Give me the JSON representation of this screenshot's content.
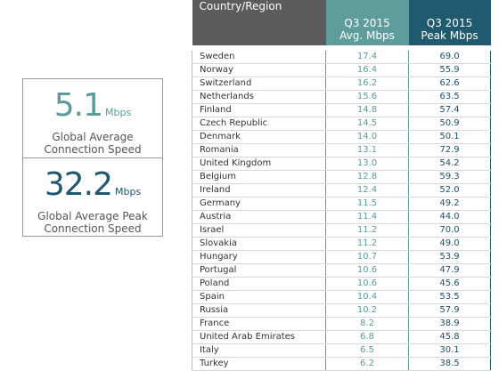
{
  "stats": [
    {
      "value": "5.1",
      "unit": "Mbps",
      "caption": [
        "Global Average",
        "Connection Speed"
      ]
    },
    {
      "value": "32.2",
      "unit": "Mbps",
      "caption": [
        "Global Average Peak",
        "Connection Speed"
      ]
    }
  ],
  "table": {
    "header": [
      [
        "Country/Region"
      ],
      [
        "Q3 2015",
        "Avg. Mbps"
      ],
      [
        "Q3 2015",
        "Peak Mbps"
      ]
    ],
    "rows": [
      [
        "Sweden",
        "17.4",
        "69.0"
      ],
      [
        "Norway",
        "16.4",
        "55.9"
      ],
      [
        "Switzerland",
        "16.2",
        "62.6"
      ],
      [
        "Netherlands",
        "15.6",
        "63.5"
      ],
      [
        "Finland",
        "14.8",
        "57.4"
      ],
      [
        "Czech Republic",
        "14.5",
        "50.9"
      ],
      [
        "Denmark",
        "14.0",
        "50.1"
      ],
      [
        "Romania",
        "13.1",
        "72.9"
      ],
      [
        "United Kingdom",
        "13.0",
        "54.2"
      ],
      [
        "Belgium",
        "12.8",
        "59.3"
      ],
      [
        "Ireland",
        "12.4",
        "52.0"
      ],
      [
        "Germany",
        "11.5",
        "49.2"
      ],
      [
        "Austria",
        "11.4",
        "44.0"
      ],
      [
        "Israel",
        "11.2",
        "70.0"
      ],
      [
        "Slovakia",
        "11.2",
        "49.0"
      ],
      [
        "Hungary",
        "10.7",
        "53.9"
      ],
      [
        "Portugal",
        "10.6",
        "47.9"
      ],
      [
        "Poland",
        "10.6",
        "45.6"
      ],
      [
        "Spain",
        "10.4",
        "53.5"
      ],
      [
        "Russia",
        "10.2",
        "57.9"
      ],
      [
        "France",
        "8.2",
        "38.9"
      ],
      [
        "United Arab Emirates",
        "6.8",
        "45.8"
      ],
      [
        "Italy",
        "6.5",
        "30.1"
      ],
      [
        "Turkey",
        "6.2",
        "38.5"
      ]
    ]
  }
}
